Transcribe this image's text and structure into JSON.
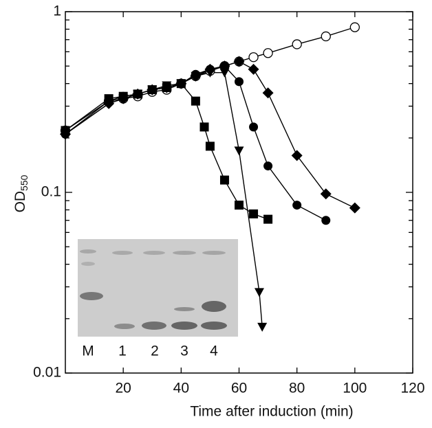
{
  "chart_data": {
    "type": "line",
    "x_label": "Time after induction (min)",
    "y_label": "OD",
    "y_label_subscript": "550",
    "log_y": true,
    "xlim": [
      0,
      120
    ],
    "xticks": [
      20,
      40,
      60,
      80,
      100,
      120
    ],
    "ylim": [
      0.01,
      1
    ],
    "yticks": [
      0.01,
      0.1,
      1
    ],
    "series": [
      {
        "marker": "circle-open",
        "color": "#000000",
        "x": [
          0,
          15,
          20,
          25,
          30,
          35,
          40,
          45,
          50,
          55,
          60,
          65,
          70,
          80,
          90,
          100
        ],
        "values": [
          0.22,
          0.32,
          0.33,
          0.34,
          0.36,
          0.37,
          0.4,
          0.44,
          0.47,
          0.5,
          0.53,
          0.56,
          0.59,
          0.66,
          0.73,
          0.82
        ]
      },
      {
        "marker": "square",
        "color": "#000000",
        "x": [
          0,
          15,
          20,
          25,
          30,
          35,
          40,
          45,
          48,
          50,
          55,
          60,
          65,
          70
        ],
        "values": [
          0.22,
          0.33,
          0.34,
          0.35,
          0.37,
          0.38,
          0.4,
          0.32,
          0.23,
          0.18,
          0.117,
          0.085,
          0.076,
          0.071
        ]
      },
      {
        "marker": "triangle-down",
        "color": "#000000",
        "x": [
          0,
          15,
          20,
          25,
          30,
          35,
          40,
          45,
          50,
          55,
          60,
          67,
          68
        ],
        "values": [
          0.21,
          0.31,
          0.33,
          0.35,
          0.37,
          0.39,
          0.4,
          0.44,
          0.46,
          0.46,
          0.17,
          0.028,
          0.018
        ]
      },
      {
        "marker": "circle",
        "color": "#000000",
        "x": [
          0,
          15,
          20,
          25,
          30,
          35,
          40,
          45,
          50,
          55,
          60,
          65,
          70,
          80,
          90
        ],
        "values": [
          0.21,
          0.32,
          0.34,
          0.35,
          0.37,
          0.38,
          0.4,
          0.45,
          0.48,
          0.5,
          0.41,
          0.23,
          0.14,
          0.085,
          0.07
        ]
      },
      {
        "marker": "diamond",
        "color": "#000000",
        "x": [
          0,
          15,
          20,
          25,
          30,
          35,
          40,
          45,
          50,
          55,
          60,
          65,
          70,
          80,
          90,
          100
        ],
        "values": [
          0.21,
          0.31,
          0.33,
          0.35,
          0.37,
          0.38,
          0.4,
          0.44,
          0.48,
          0.5,
          0.53,
          0.48,
          0.355,
          0.16,
          0.098,
          0.082
        ]
      }
    ],
    "inset_lane_labels": [
      "M",
      "1",
      "2",
      "3",
      "4"
    ]
  }
}
